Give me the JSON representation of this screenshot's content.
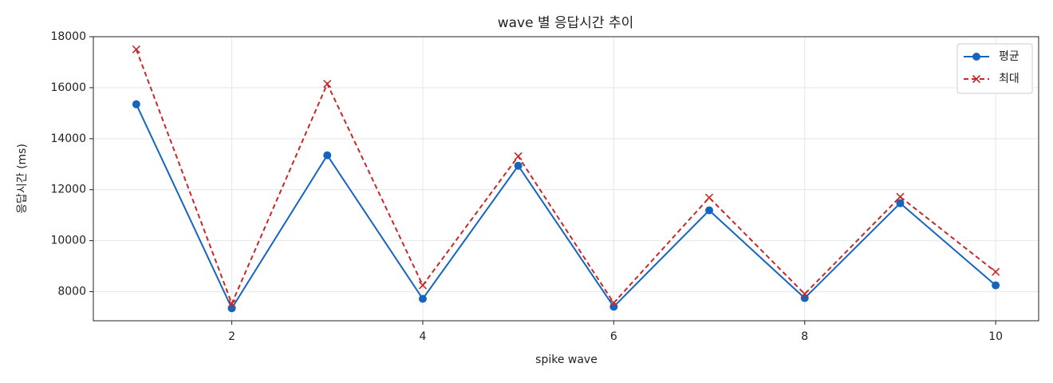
{
  "chart_data": {
    "type": "line",
    "title": "wave 별 응답시간 추이",
    "xlabel": "spike wave",
    "ylabel": "응답시간 (ms)",
    "x": [
      1,
      2,
      3,
      4,
      5,
      6,
      7,
      8,
      9,
      10
    ],
    "series": [
      {
        "name": "평균",
        "color": "#1565c0",
        "marker": "o",
        "dashed": false,
        "values": [
          15350,
          7350,
          13350,
          7720,
          12940,
          7410,
          11190,
          7750,
          11470,
          8250
        ]
      },
      {
        "name": "최대",
        "color": "#c62828",
        "marker": "x",
        "dashed": true,
        "values": [
          17500,
          7530,
          16150,
          8250,
          13310,
          7560,
          11690,
          7910,
          11720,
          8780
        ]
      }
    ],
    "xlim": [
      0.55,
      10.45
    ],
    "ylim": [
      6860,
      18000
    ],
    "xticks": [
      2,
      4,
      6,
      8,
      10
    ],
    "yticks": [
      8000,
      10000,
      12000,
      14000,
      16000,
      18000
    ],
    "grid": true,
    "legend": "upper-right"
  }
}
